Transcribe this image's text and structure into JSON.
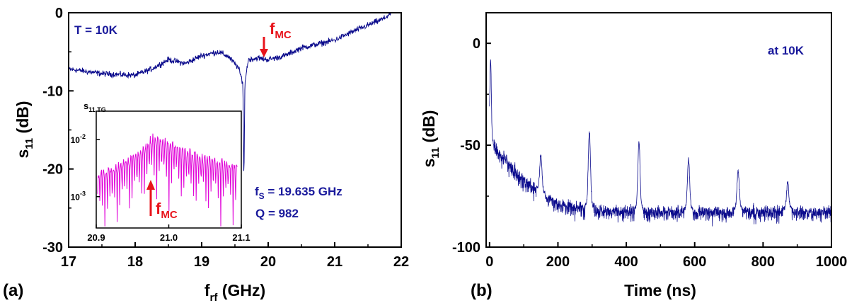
{
  "colors": {
    "trace": "#0a0a8c",
    "inset_trace": "#e000d8",
    "accent": "#e8141c",
    "label": "#1a1a9c",
    "axis": "#000000"
  },
  "chart_data": [
    {
      "panel_label": "(a)",
      "type": "line",
      "xlabel": {
        "main": "f",
        "sub": "rf",
        "unit": " (GHz)"
      },
      "ylabel": {
        "main": "s",
        "sub": "11",
        "unit": " (dB)"
      },
      "xlim": [
        17,
        22
      ],
      "ylim": [
        -30,
        0
      ],
      "xticks": [
        "17",
        "18",
        "19",
        "20",
        "21",
        "22"
      ],
      "yticks": [
        "0",
        "-10",
        "-20",
        "-30"
      ],
      "annotations": {
        "temp": "T = 10K",
        "fmc_main": "f",
        "fmc_sub": "MC",
        "fs_main": "f",
        "fs_sub": "S",
        "fs_value": " = 19.635 GHz",
        "q": "Q = 982"
      },
      "series": [
        {
          "x": [
            17.0,
            17.5,
            18.0,
            18.25,
            18.5,
            18.75,
            19.0,
            19.25,
            19.4,
            19.55,
            19.62,
            19.635,
            19.65,
            19.7,
            19.85,
            20.0,
            20.25,
            20.5,
            20.75,
            21.0,
            21.25,
            21.5,
            21.75,
            21.85
          ],
          "y": [
            -7.2,
            -7.8,
            -8.0,
            -7.2,
            -6.0,
            -6.5,
            -5.5,
            -5.0,
            -5.6,
            -7.0,
            -9.0,
            -22.0,
            -9.0,
            -6.0,
            -5.8,
            -6.0,
            -5.5,
            -4.5,
            -4.0,
            -3.5,
            -2.5,
            -1.6,
            -0.7,
            0.0
          ]
        }
      ],
      "inset": {
        "title_main": "s",
        "title_sub": "11,TG",
        "xlim": [
          20.9,
          21.1
        ],
        "ylim_log": [
          -3.55,
          -1.5
        ],
        "xticks": [
          "20.9",
          "21.0",
          "21.1"
        ],
        "yticks": [
          {
            "base": "10",
            "exp": "-2"
          },
          {
            "base": "10",
            "exp": "-3"
          }
        ],
        "fmc_main": "f",
        "fmc_sub": "MC",
        "envelope": {
          "x": [
            20.9,
            20.93,
            20.96,
            20.98,
            21.0,
            21.02,
            21.05,
            21.08,
            21.095
          ],
          "y": [
            0.0025,
            0.0035,
            0.006,
            0.012,
            0.009,
            0.007,
            0.005,
            0.004,
            0.0035
          ]
        }
      }
    },
    {
      "panel_label": "(b)",
      "type": "line",
      "xlabel": {
        "main": "Time (ns)"
      },
      "ylabel": {
        "main": "s",
        "sub": "11",
        "unit": " (dB)"
      },
      "xlim": [
        -10,
        1000
      ],
      "ylim": [
        -100,
        15
      ],
      "xticks": [
        "0",
        "200",
        "400",
        "600",
        "800",
        "1000"
      ],
      "yticks": [
        "0",
        "-50",
        "-100"
      ],
      "annotations": {
        "temp": "at 10K"
      },
      "baseline": {
        "x": [
          0,
          30,
          60,
          100,
          150,
          200,
          250,
          300,
          400,
          500,
          600,
          700,
          800,
          1000
        ],
        "y": [
          -47,
          -52,
          -58,
          -65,
          -72,
          -77,
          -79,
          -80,
          -81,
          -81,
          -81,
          -81,
          -81,
          -81
        ]
      },
      "spikes": [
        {
          "x": 3,
          "y": -8
        },
        {
          "x": 150,
          "y": -55
        },
        {
          "x": 292,
          "y": -43
        },
        {
          "x": 437,
          "y": -48
        },
        {
          "x": 582,
          "y": -57
        },
        {
          "x": 727,
          "y": -62
        },
        {
          "x": 872,
          "y": -68
        }
      ]
    }
  ]
}
